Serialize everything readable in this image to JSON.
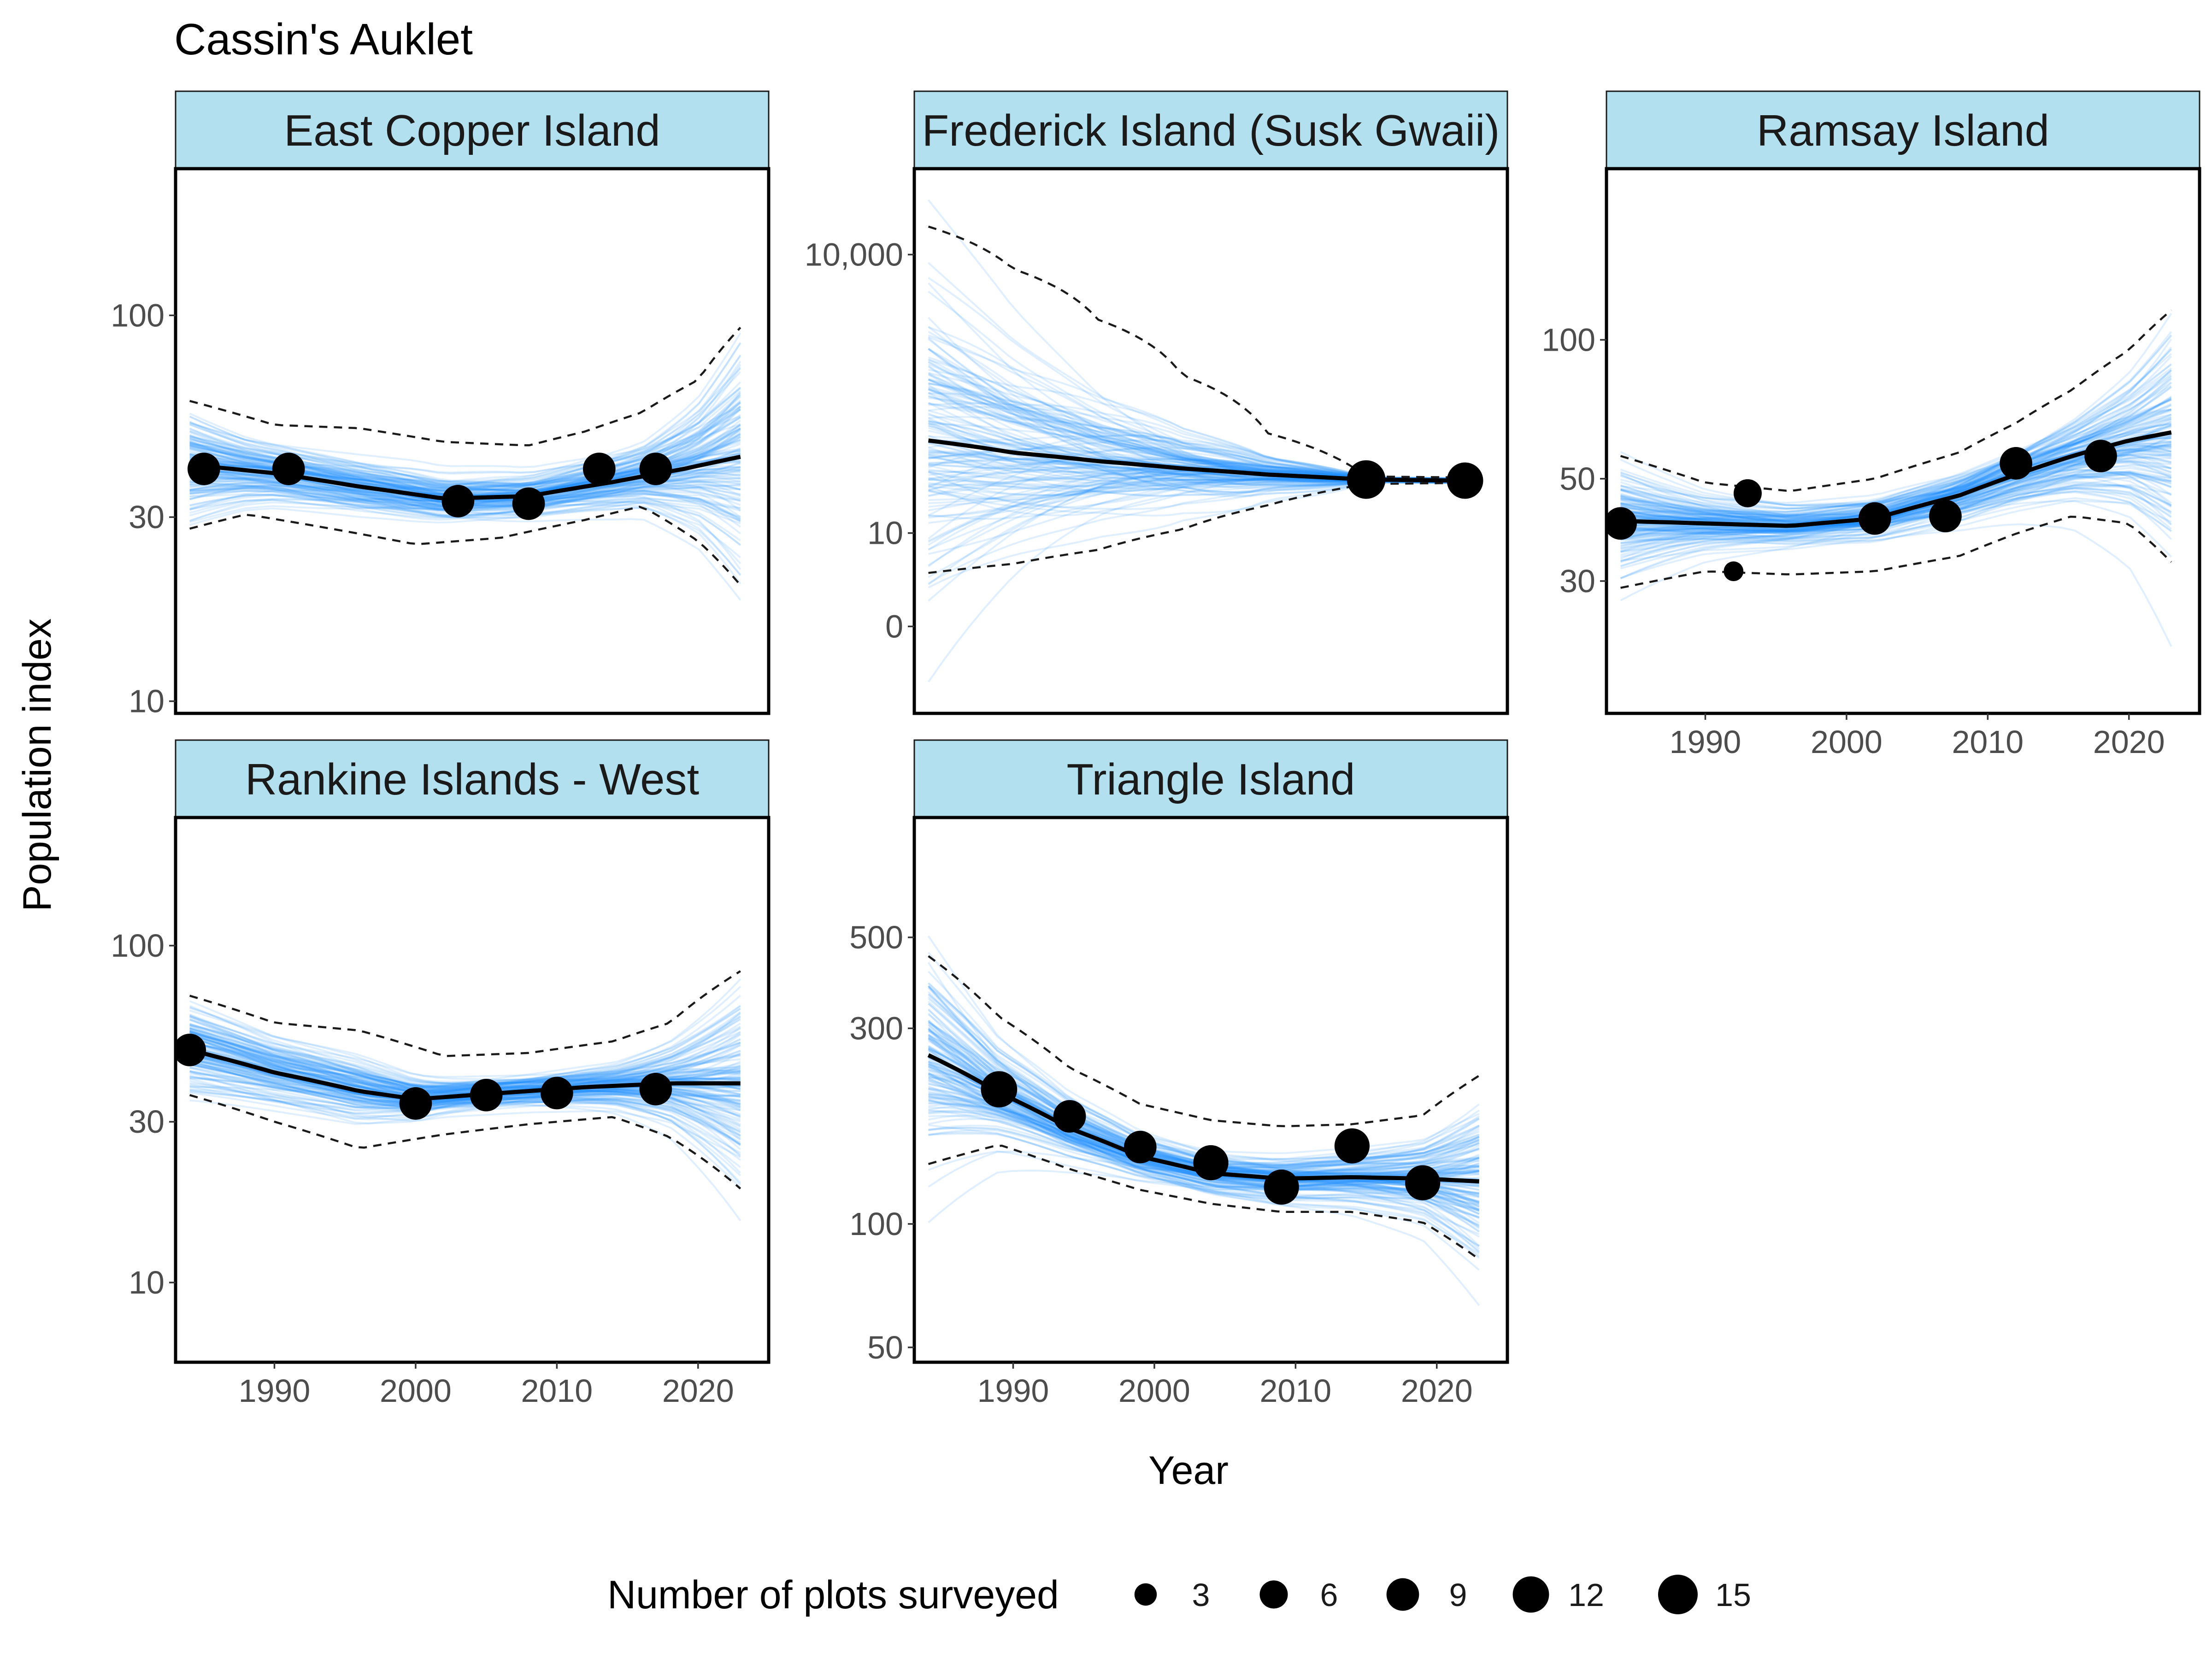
{
  "title": "Cassin's Auklet",
  "x_axis_title": "Year",
  "y_axis_title": "Population index",
  "colors": {
    "strip_fill": "#b3e0ef",
    "draws": "#1e90ff",
    "trend": "#000000",
    "points": "#000000"
  },
  "legend": {
    "title": "Number of plots surveyed",
    "entries": [
      {
        "label": "3",
        "value": 3
      },
      {
        "label": "6",
        "value": 6
      },
      {
        "label": "9",
        "value": 9
      },
      {
        "label": "12",
        "value": 12
      },
      {
        "label": "15",
        "value": 15
      }
    ]
  },
  "chart_data": [
    {
      "type": "line",
      "panel": "East Copper Island",
      "y_scale": "log",
      "xlim": [
        1983,
        2025
      ],
      "ylim": [
        9.3,
        240
      ],
      "x_ticks": [
        1990,
        2000,
        2010,
        2020
      ],
      "x_tick_labels": [
        "1990",
        "2000",
        "2010",
        "2020"
      ],
      "show_x_ticks": false,
      "y_ticks": [
        10,
        30,
        100
      ],
      "y_tick_labels": [
        "10",
        "30",
        "100"
      ],
      "trend": {
        "x": [
          1984,
          1990,
          1996,
          2002,
          2008,
          2014,
          2019,
          2023
        ],
        "y": [
          41,
          39,
          36,
          33.5,
          34,
          37,
          40,
          43
        ]
      },
      "upper": {
        "x": [
          1984,
          1990,
          1996,
          2002,
          2008,
          2012,
          2016,
          2020,
          2023
        ],
        "y": [
          60,
          52,
          51,
          47,
          46,
          50,
          56,
          68,
          93
        ]
      },
      "lower": {
        "x": [
          1984,
          1988,
          1994,
          2000,
          2006,
          2012,
          2016,
          2020,
          2023
        ],
        "y": [
          28,
          30.5,
          28,
          25.5,
          26.5,
          29.5,
          32,
          26,
          20
        ]
      },
      "points": {
        "x": [
          1985,
          1991,
          2003,
          2008,
          2013,
          2017
        ],
        "y": [
          40,
          40,
          33,
          32.5,
          40,
          40
        ],
        "plots": [
          9,
          9,
          9,
          9,
          9,
          9
        ]
      },
      "band_lo": [
        20,
        240
      ]
    },
    {
      "type": "line",
      "panel": "Frederick Island (Susk Gwaii)",
      "y_scale": "asinh",
      "xlim": [
        1983,
        2025
      ],
      "ylim": [
        -8.5,
        84000
      ],
      "x_ticks": [
        1990,
        2000,
        2010,
        2020
      ],
      "x_tick_labels": [
        "1990",
        "2000",
        "2010",
        "2020"
      ],
      "show_x_ticks": false,
      "y_ticks": [
        0,
        10,
        10000
      ],
      "y_tick_labels": [
        "0",
        "10",
        "10,000"
      ],
      "trend": {
        "x": [
          1984,
          1990,
          1996,
          2002,
          2008,
          2015,
          2022
        ],
        "y": [
          100,
          74,
          60,
          50,
          43,
          38,
          37
        ]
      },
      "upper": {
        "x": [
          1984,
          1990,
          1996,
          2002,
          2008,
          2015,
          2022
        ],
        "y": [
          20000,
          7000,
          2000,
          500,
          120,
          41,
          40
        ]
      },
      "lower": {
        "x": [
          1984,
          1990,
          1996,
          2002,
          2008,
          2015,
          2022
        ],
        "y": [
          3.5,
          4.5,
          6.5,
          11,
          20,
          34,
          35
        ]
      },
      "points": {
        "x": [
          2015,
          2022
        ],
        "y": [
          38,
          37
        ],
        "plots": [
          14,
          12
        ]
      },
      "band_lo": [
        -4,
        70000
      ]
    },
    {
      "type": "line",
      "panel": "Ramsay Island",
      "y_scale": "log",
      "xlim": [
        1983,
        2025
      ],
      "ylim": [
        15.5,
        235
      ],
      "x_ticks": [
        1990,
        2000,
        2010,
        2020
      ],
      "x_tick_labels": [
        "1990",
        "2000",
        "2010",
        "2020"
      ],
      "show_x_ticks": true,
      "y_ticks": [
        30,
        50,
        100
      ],
      "y_tick_labels": [
        "30",
        "50",
        "100"
      ],
      "trend": {
        "x": [
          1984,
          1990,
          1996,
          2002,
          2008,
          2012,
          2016,
          2020,
          2023
        ],
        "y": [
          40.5,
          40,
          39.5,
          41,
          46,
          51,
          56,
          60.5,
          63
        ]
      },
      "upper": {
        "x": [
          1984,
          1990,
          1996,
          2002,
          2008,
          2012,
          2016,
          2020,
          2023
        ],
        "y": [
          56,
          49,
          47,
          50,
          57,
          66,
          78,
          95,
          116
        ]
      },
      "lower": {
        "x": [
          1984,
          1990,
          1996,
          2002,
          2008,
          2012,
          2016,
          2020,
          2023
        ],
        "y": [
          29,
          31.5,
          31,
          31.5,
          34,
          38,
          41.5,
          40,
          33
        ]
      },
      "points": {
        "x": [
          1984,
          1992,
          1993,
          2002,
          2007,
          2012,
          2018
        ],
        "y": [
          40,
          31.5,
          46.5,
          41,
          41.5,
          54,
          56
        ],
        "plots": [
          9,
          2,
          6,
          9,
          9,
          9,
          9
        ]
      },
      "band_lo": [
        20,
        220
      ]
    },
    {
      "type": "line",
      "panel": "Rankine Islands - West",
      "y_scale": "log",
      "xlim": [
        1983,
        2025
      ],
      "ylim": [
        5.8,
        240
      ],
      "x_ticks": [
        1990,
        2000,
        2010,
        2020
      ],
      "x_tick_labels": [
        "1990",
        "2000",
        "2010",
        "2020"
      ],
      "show_x_ticks": true,
      "y_ticks": [
        10,
        30,
        100
      ],
      "y_tick_labels": [
        "10",
        "30",
        "100"
      ],
      "trend": {
        "x": [
          1984,
          1990,
          1996,
          2000,
          2006,
          2012,
          2018,
          2023
        ],
        "y": [
          49,
          42,
          37,
          35,
          36.5,
          38,
          39,
          39
        ]
      },
      "upper": {
        "x": [
          1984,
          1990,
          1996,
          2002,
          2008,
          2014,
          2018,
          2023
        ],
        "y": [
          71,
          59,
          56,
          47,
          48,
          52,
          59,
          84
        ]
      },
      "lower": {
        "x": [
          1984,
          1990,
          1996,
          2002,
          2008,
          2014,
          2018,
          2023
        ],
        "y": [
          36,
          30,
          25,
          27.5,
          29.5,
          31,
          27,
          19
        ]
      },
      "points": {
        "x": [
          1984,
          2000,
          2005,
          2010,
          2017
        ],
        "y": [
          49,
          34,
          36,
          36.5,
          37.5
        ],
        "plots": [
          9,
          9,
          9,
          9,
          9
        ]
      },
      "band_lo": [
        12,
        240
      ]
    },
    {
      "type": "line",
      "panel": "Triangle Island",
      "y_scale": "log",
      "xlim": [
        1983,
        2025
      ],
      "ylim": [
        46,
        980
      ],
      "x_ticks": [
        1990,
        2000,
        2010,
        2020
      ],
      "x_tick_labels": [
        "1990",
        "2000",
        "2010",
        "2020"
      ],
      "show_x_ticks": true,
      "y_ticks": [
        50,
        100,
        300,
        500
      ],
      "y_tick_labels": [
        "50",
        "100",
        "300",
        "500"
      ],
      "trend": {
        "x": [
          1984,
          1989,
          1994,
          1999,
          2004,
          2009,
          2014,
          2019,
          2023
        ],
        "y": [
          258,
          209,
          171,
          146,
          133,
          129,
          130,
          129,
          127
        ]
      },
      "upper": {
        "x": [
          1984,
          1989,
          1994,
          1999,
          2004,
          2009,
          2014,
          2019,
          2023
        ],
        "y": [
          450,
          320,
          240,
          196,
          179,
          173,
          175,
          184,
          230
        ]
      },
      "lower": {
        "x": [
          1984,
          1989,
          1994,
          1999,
          2004,
          2009,
          2014,
          2019,
          2023
        ],
        "y": [
          140,
          156,
          136,
          121,
          112,
          107,
          107,
          101,
          82
        ]
      },
      "points": {
        "x": [
          1989,
          1994,
          1999,
          2004,
          2009,
          2014,
          2019
        ],
        "y": [
          213,
          183,
          154,
          141,
          123,
          155,
          126
        ],
        "plots": [
          12,
          9,
          9,
          11,
          11,
          11,
          11
        ]
      },
      "band_lo": [
        80,
        900
      ]
    }
  ]
}
